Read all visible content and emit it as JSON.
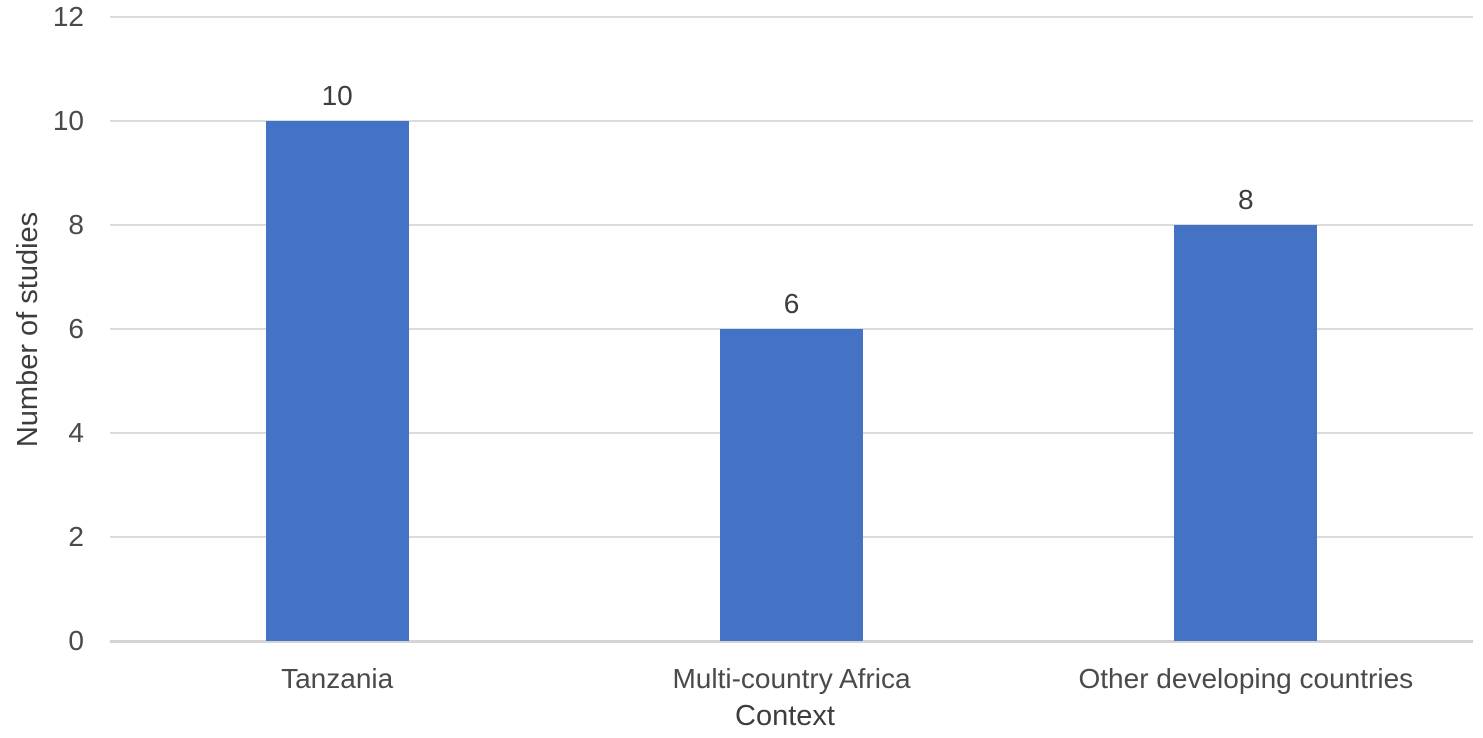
{
  "chart_data": {
    "type": "bar",
    "title": "",
    "categories": [
      "Tanzania",
      "Multi-country Africa",
      "Other developing countries"
    ],
    "values": [
      10,
      6,
      8
    ],
    "data_labels": [
      "10",
      "6",
      "8"
    ],
    "xlabel": "Context",
    "ylabel": "Number of studies",
    "ylim": [
      0,
      12
    ],
    "yticks": [
      0,
      2,
      4,
      6,
      8,
      10,
      12
    ],
    "grid": true,
    "legend_position": "none",
    "colors": {
      "bar": "#4472C4",
      "gridline": "#DBDBDB",
      "axis_line": "#D4D4D4",
      "tick_text": "#4A4A4A",
      "category_text": "#4A4A4A",
      "data_label_text": "#3D3D3D",
      "axis_title_text": "#3D3D3D",
      "background": "#FFFFFF"
    }
  }
}
